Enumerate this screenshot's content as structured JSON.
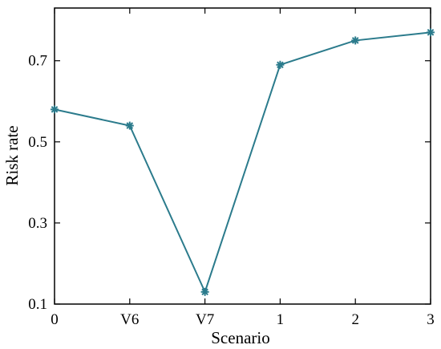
{
  "chart_data": {
    "type": "line",
    "categories": [
      "0",
      "V6",
      "V7",
      "1",
      "2",
      "3"
    ],
    "series": [
      {
        "values": [
          0.58,
          0.54,
          0.13,
          0.69,
          0.75,
          0.77
        ]
      }
    ],
    "xlabel": "Scenario",
    "ylabel": "Risk rate",
    "ylim": [
      0.1,
      0.83
    ],
    "yticks": [
      0.1,
      0.3,
      0.5,
      0.7
    ],
    "ytick_labels": [
      "0.1",
      "0.3",
      "0.5",
      "0.7"
    ],
    "marker": "asterisk",
    "line_color": "#2b7b8c",
    "grid": false,
    "legend": "none"
  }
}
